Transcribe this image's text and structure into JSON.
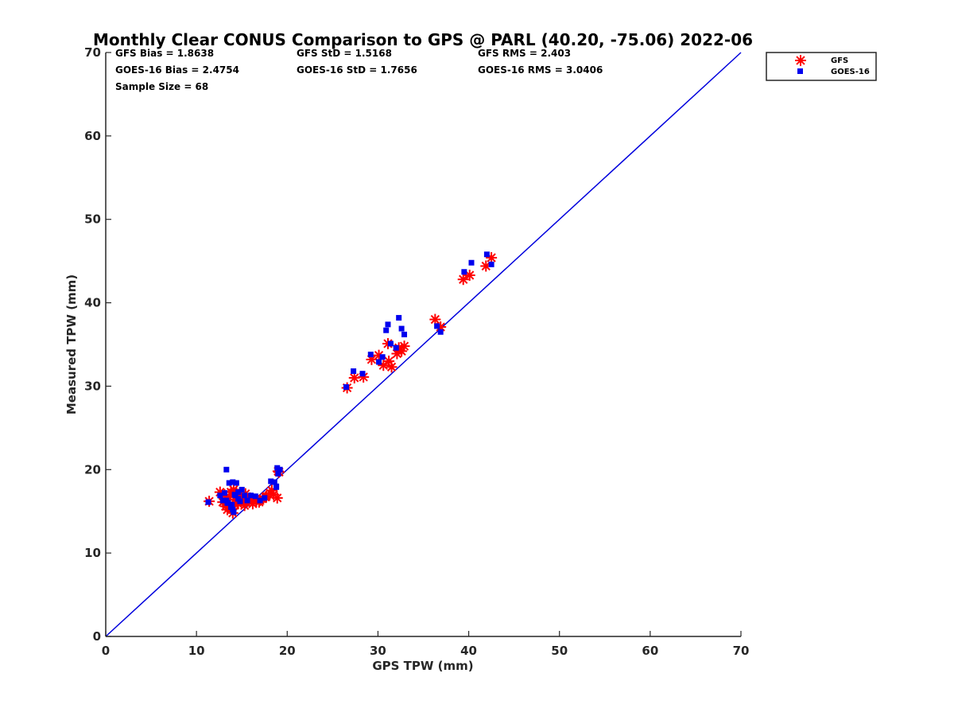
{
  "chart_data": {
    "type": "scatter",
    "title": "Monthly Clear CONUS Comparison to GPS @ PARL (40.20, -75.06) 2022-06",
    "xlabel": "GPS TPW (mm)",
    "ylabel": "Measured TPW (mm)",
    "xlim": [
      0,
      70
    ],
    "ylim": [
      0,
      70
    ],
    "xticks": [
      0,
      10,
      20,
      30,
      40,
      50,
      60,
      70
    ],
    "yticks": [
      0,
      10,
      20,
      30,
      40,
      50,
      60,
      70
    ],
    "grid": false,
    "legend_position": "top-right outside",
    "reference_line": {
      "x": [
        0,
        70
      ],
      "y": [
        0,
        70
      ],
      "color": "#0000dd"
    },
    "stats": {
      "gfs_bias": "GFS Bias = 1.8638",
      "gfs_std": "GFS StD = 1.5168",
      "gfs_rms": "GFS RMS = 2.403",
      "goes_bias": "GOES-16 Bias = 2.4754",
      "goes_std": "GOES-16 StD = 1.7656",
      "goes_rms": "GOES-16 RMS = 3.0406",
      "sample_size": "Sample Size = 68"
    },
    "series": [
      {
        "name": "GFS",
        "marker": "asterisk",
        "color": "#ff0000",
        "x": [
          11.4,
          12.6,
          12.9,
          13.1,
          13.3,
          13.4,
          13.6,
          13.8,
          14.0,
          14.2,
          14.4,
          14.6,
          14.8,
          15.0,
          15.2,
          15.4,
          15.6,
          15.9,
          16.2,
          16.6,
          17.0,
          17.3,
          17.7,
          18.1,
          18.5,
          18.9,
          19.1,
          26.6,
          27.4,
          28.4,
          29.3,
          30.1,
          30.6,
          31.1,
          31.5,
          32.1,
          32.6,
          32.9,
          36.3,
          36.9,
          39.4,
          40.1,
          41.9,
          42.5,
          13.2,
          13.9,
          14.5,
          15.3,
          16.1,
          16.9,
          17.6,
          18.3,
          19.0,
          31.2,
          32.3,
          14.1
        ],
        "y": [
          16.2,
          17.3,
          16.1,
          17.0,
          15.9,
          15.2,
          16.7,
          17.3,
          14.8,
          16.4,
          17.2,
          15.9,
          16.6,
          16.8,
          16.1,
          17.1,
          16.4,
          16.6,
          15.9,
          16.2,
          16.3,
          16.5,
          16.8,
          17.2,
          17.0,
          16.6,
          19.7,
          29.8,
          31.0,
          31.1,
          33.2,
          33.7,
          32.5,
          35.1,
          32.3,
          33.9,
          34.2,
          34.8,
          38.0,
          37.1,
          42.8,
          43.3,
          44.4,
          45.4,
          15.6,
          15.3,
          16.0,
          15.7,
          16.5,
          16.1,
          16.7,
          17.5,
          19.8,
          33.0,
          34.6,
          17.6
        ]
      },
      {
        "name": "GOES-16",
        "marker": "square",
        "color": "#0000ee",
        "x": [
          11.3,
          12.6,
          12.9,
          13.1,
          13.3,
          13.4,
          13.6,
          13.8,
          14.0,
          14.2,
          14.4,
          14.6,
          14.8,
          15.0,
          15.3,
          15.6,
          16.0,
          16.5,
          17.0,
          17.5,
          18.2,
          18.6,
          18.8,
          18.9,
          19.0,
          26.5,
          27.3,
          28.3,
          29.2,
          30.1,
          30.5,
          30.9,
          31.1,
          31.4,
          32.0,
          32.3,
          32.6,
          32.9,
          36.5,
          36.9,
          39.5,
          40.3,
          42.0,
          42.5,
          13.3,
          13.5,
          13.9,
          14.3,
          14.6,
          18.8,
          19.2,
          14.0,
          14.1
        ],
        "y": [
          16.1,
          16.9,
          16.3,
          17.2,
          20.0,
          16.0,
          18.4,
          15.5,
          18.5,
          17.0,
          18.4,
          17.3,
          16.2,
          17.6,
          16.9,
          16.3,
          16.9,
          16.8,
          16.3,
          16.6,
          18.6,
          18.5,
          18.0,
          20.2,
          19.5,
          29.9,
          31.8,
          31.5,
          33.8,
          32.9,
          33.5,
          36.7,
          37.4,
          35.1,
          34.6,
          38.2,
          36.9,
          36.2,
          37.2,
          36.5,
          43.7,
          44.8,
          45.8,
          44.6,
          16.3,
          16.0,
          15.8,
          16.9,
          16.5,
          17.9,
          20.0,
          15.2,
          14.9
        ]
      }
    ]
  }
}
